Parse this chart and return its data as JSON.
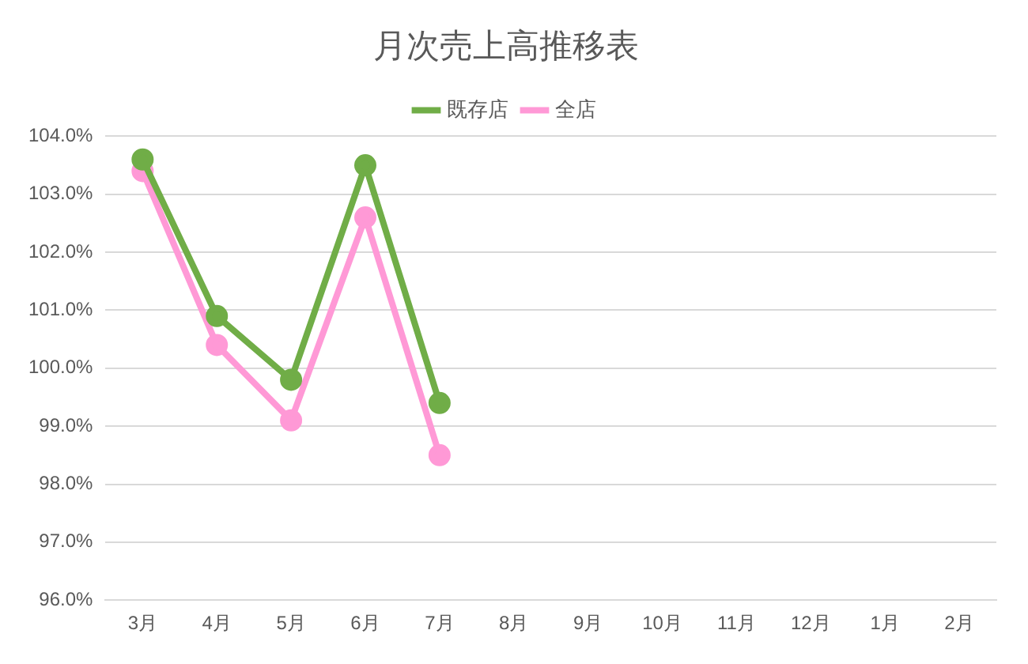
{
  "chart_data": {
    "type": "line",
    "title": "月次売上高推移表",
    "categories": [
      "3月",
      "4月",
      "5月",
      "6月",
      "7月",
      "8月",
      "9月",
      "10月",
      "11月",
      "12月",
      "1月",
      "2月"
    ],
    "series": [
      {
        "name": "既存店",
        "color": "#70ad47",
        "values": [
          103.6,
          100.9,
          99.8,
          103.5,
          99.4,
          null,
          null,
          null,
          null,
          null,
          null,
          null
        ]
      },
      {
        "name": "全店",
        "color": "#ff99d6",
        "values": [
          103.4,
          100.4,
          99.1,
          102.6,
          98.5,
          null,
          null,
          null,
          null,
          null,
          null,
          null
        ]
      }
    ],
    "ylim": [
      96,
      104
    ],
    "yticks": [
      {
        "value": 96,
        "label": "96.0%"
      },
      {
        "value": 97,
        "label": "97.0%"
      },
      {
        "value": 98,
        "label": "98.0%"
      },
      {
        "value": 99,
        "label": "99.0%"
      },
      {
        "value": 100,
        "label": "100.0%"
      },
      {
        "value": 101,
        "label": "101.0%"
      },
      {
        "value": 102,
        "label": "102.0%"
      },
      {
        "value": 103,
        "label": "103.0%"
      },
      {
        "value": 104,
        "label": "104.0%"
      }
    ],
    "grid": "y",
    "legend": "top",
    "marker": "circle",
    "line_style": "solid"
  }
}
